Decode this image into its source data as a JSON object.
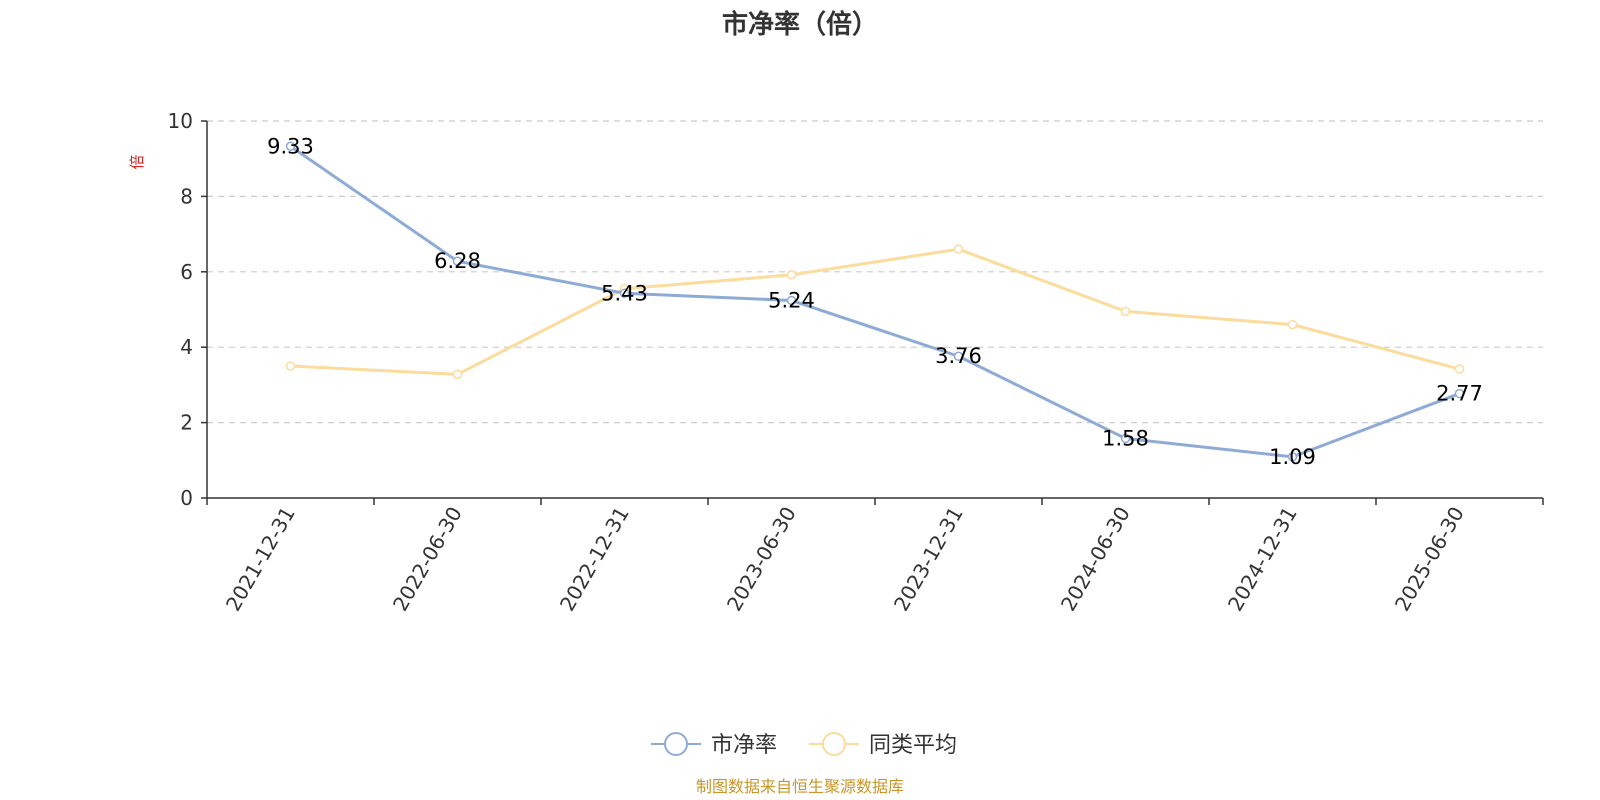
{
  "chart_data": {
    "type": "line",
    "title": "市净率（倍）",
    "ylabel": "倍",
    "xlabel": "",
    "ylim": [
      0,
      10
    ],
    "yticks": [
      0,
      2,
      4,
      6,
      8,
      10
    ],
    "grid": true,
    "legend_position": "bottom",
    "categories": [
      "2021-12-31",
      "2022-06-30",
      "2022-12-31",
      "2023-06-30",
      "2023-12-31",
      "2024-06-30",
      "2024-12-31",
      "2025-06-30"
    ],
    "series": [
      {
        "name": "市净率",
        "color": "#8eabd6",
        "values": [
          9.33,
          6.28,
          5.43,
          5.24,
          3.76,
          1.58,
          1.09,
          2.77
        ],
        "data_labels": [
          "9.33",
          "6.28",
          "5.43",
          "5.24",
          "3.76",
          "1.58",
          "1.09",
          "2.77"
        ]
      },
      {
        "name": "同类平均",
        "color": "#fbdc9c",
        "values": [
          3.5,
          3.28,
          5.55,
          5.92,
          6.6,
          4.95,
          4.6,
          3.42
        ]
      }
    ]
  },
  "footer": {
    "source": "制图数据来自恒生聚源数据库"
  }
}
